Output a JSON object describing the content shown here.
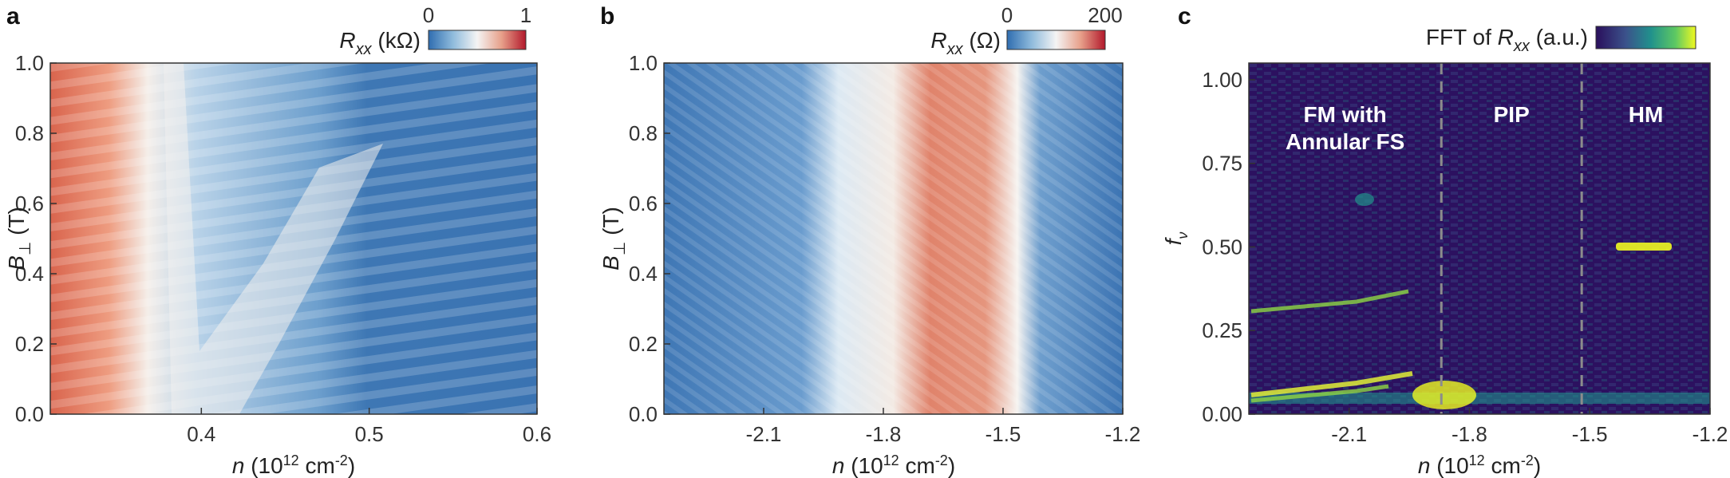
{
  "colors": {
    "coolwarm_low": "#2f6db0",
    "coolwarm_mid": "#f4f4f4",
    "coolwarm_high": "#b2182b",
    "viridis_low": "#2a0f5c",
    "viridis_high": "#f0f921",
    "divider": "#8c8c8c"
  },
  "panels": {
    "a": {
      "label": "a"
    },
    "b": {
      "label": "b"
    },
    "c": {
      "label": "c"
    }
  },
  "chart_data": [
    {
      "type": "heatmap",
      "panel": "a",
      "xlabel": "n (10^12 cm^-2)",
      "ylabel": "B⊥ (T)",
      "xlim": [
        0.31,
        0.6
      ],
      "ylim": [
        0,
        1.0
      ],
      "x_ticks": [
        "0.4",
        "0.5",
        "0.6"
      ],
      "y_ticks": [
        "0.0",
        "0.2",
        "0.4",
        "0.6",
        "0.8",
        "1.0"
      ],
      "colorbar": {
        "label": "Rxx (kΩ)",
        "min": "0",
        "max": "1",
        "colormap": "blue-white-red"
      }
    },
    {
      "type": "heatmap",
      "panel": "b",
      "xlabel": "n (10^12 cm^-2)",
      "ylabel": "B⊥ (T)",
      "xlim": [
        -2.35,
        -1.2
      ],
      "ylim": [
        0,
        1.0
      ],
      "x_ticks": [
        "-2.1",
        "-1.8",
        "-1.5",
        "-1.2"
      ],
      "y_ticks": [
        "0.0",
        "0.2",
        "0.4",
        "0.6",
        "0.8",
        "1.0"
      ],
      "colorbar": {
        "label": "Rxx (Ω)",
        "min": "0",
        "max": "200",
        "colormap": "blue-white-red"
      }
    },
    {
      "type": "heatmap",
      "panel": "c",
      "xlabel": "n (10^12 cm^-2)",
      "ylabel": "fν",
      "xlim": [
        -2.35,
        -1.2
      ],
      "ylim": [
        0,
        1.05
      ],
      "x_ticks": [
        "-2.1",
        "-1.8",
        "-1.5",
        "-1.2"
      ],
      "y_ticks": [
        "0.00",
        "0.25",
        "0.50",
        "0.75",
        "1.00"
      ],
      "colorbar": {
        "label": "FFT of Rxx (a.u.)",
        "colormap": "viridis"
      },
      "dividers_n": [
        -1.87,
        -1.52
      ],
      "regions": [
        {
          "lines": [
            "FM with",
            "Annular FS"
          ]
        },
        {
          "lines": [
            "PIP"
          ]
        },
        {
          "lines": [
            "HM"
          ]
        }
      ]
    }
  ]
}
